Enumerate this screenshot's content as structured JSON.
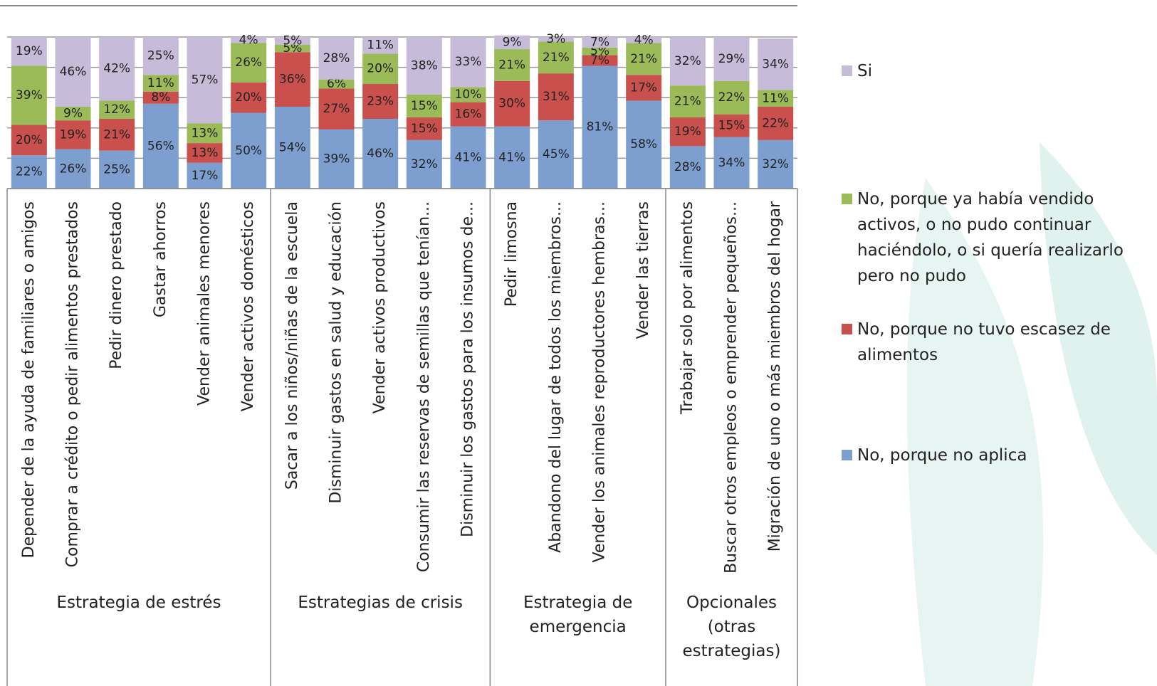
{
  "chart_data": {
    "type": "stacked_bar",
    "categories": [
      "Depender de la ayuda de familiares o amigos",
      "Comprar a crédito o pedir alimentos prestados",
      "Pedir dinero prestado",
      "Gastar ahorros",
      "Vender animales menores",
      "Vender activos domésticos",
      "Sacar a los niños/niñas de la escuela",
      "Disminuir gastos en salud y educación",
      "Vender activos productivos",
      "Consumir las  reservas de semillas que tenían...",
      "Disminuir los gastos para los insumos de...",
      "Pedir limosna",
      "Abandono del lugar de todos los miembros...",
      "Vender los animales reproductores hembras...",
      "Vender las tierras",
      "Trabajar solo por alimentos",
      "Buscar otros empleos o emprender pequeños...",
      "Migración de uno o más miembros del hogar"
    ],
    "groups": [
      {
        "name": "Estrategia de estrés",
        "start": 0,
        "end": 5
      },
      {
        "name": "Estrategias de crisis",
        "start": 6,
        "end": 10
      },
      {
        "name": "Estrategia de emergencia",
        "start": 11,
        "end": 14
      },
      {
        "name": "Opcionales (otras estrategias)",
        "start": 15,
        "end": 17
      }
    ],
    "series": [
      {
        "name": "No, porque no aplica",
        "color": "#7c9fd0",
        "values": [
          22,
          26,
          25,
          56,
          17,
          50,
          54,
          39,
          46,
          32,
          41,
          41,
          45,
          81,
          58,
          28,
          34,
          32
        ]
      },
      {
        "name": "No, porque no tuvo escasez de alimentos",
        "color": "#c9504d",
        "values": [
          20,
          19,
          21,
          8,
          13,
          20,
          36,
          27,
          23,
          15,
          16,
          30,
          31,
          7,
          17,
          19,
          15,
          22
        ]
      },
      {
        "name": "No, porque ya había vendido activos, o no pudo continuar haciéndolo, o si quería realizarlo pero no pudo",
        "color": "#9bbb59",
        "values": [
          39,
          9,
          12,
          11,
          13,
          26,
          5,
          6,
          20,
          15,
          10,
          21,
          21,
          5,
          21,
          21,
          22,
          11
        ]
      },
      {
        "name": "Si",
        "color": "#c6bbd9",
        "values": [
          19,
          46,
          42,
          25,
          57,
          4,
          5,
          28,
          11,
          38,
          33,
          9,
          3,
          7,
          4,
          32,
          29,
          34
        ]
      }
    ],
    "value_labels_suffix_percent": true,
    "ylim": [
      0,
      100
    ],
    "yticks": [
      0,
      20,
      40,
      60,
      80,
      100
    ],
    "grid": true,
    "legend": "right"
  }
}
